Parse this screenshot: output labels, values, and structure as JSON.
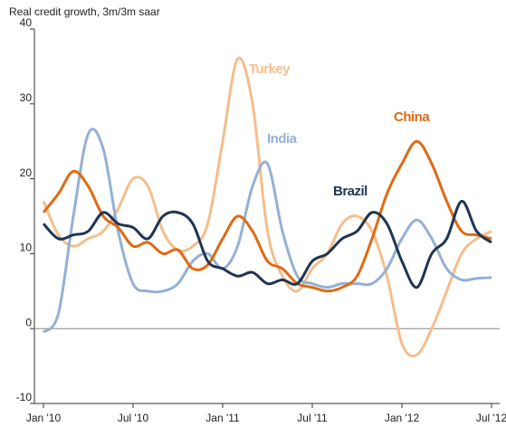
{
  "chart_data": {
    "type": "line",
    "y_axis_label": "Real credit growth, 3m/3m saar",
    "categories": [
      "Jan '10",
      null,
      null,
      null,
      null,
      null,
      "Jul '10",
      null,
      null,
      null,
      null,
      null,
      "Jan '11",
      null,
      null,
      null,
      null,
      null,
      "Jul '11",
      null,
      null,
      null,
      null,
      null,
      "Jan '12",
      null,
      null,
      null,
      null,
      null,
      "Jul '12"
    ],
    "series": [
      {
        "name": "Turkey",
        "color": "#f5be8c",
        "values": [
          17,
          12.5,
          11,
          12,
          13,
          16,
          20,
          19,
          13,
          10.5,
          11,
          14,
          25,
          36,
          30,
          13,
          7,
          5,
          8,
          10,
          14,
          15,
          13,
          7,
          -2,
          -3.5,
          0,
          5,
          10,
          12,
          13
        ]
      },
      {
        "name": "India",
        "color": "#94b0d6",
        "values": [
          -0.5,
          2,
          15,
          26,
          24,
          13,
          6,
          5,
          5,
          6,
          9,
          10,
          8,
          11,
          19,
          22,
          13,
          7,
          6,
          5.5,
          6,
          6,
          6,
          8,
          12,
          14.5,
          12,
          8,
          6.5,
          6.7,
          6.8
        ]
      },
      {
        "name": "China",
        "color": "#e06a12",
        "values": [
          15.5,
          18,
          21,
          19,
          15,
          13.5,
          11,
          11.5,
          10,
          10.5,
          8,
          8.5,
          12,
          15,
          13,
          9,
          8,
          6,
          5.5,
          5,
          5.5,
          7,
          12,
          18,
          22,
          25,
          22,
          17,
          13,
          12.5,
          12
        ]
      },
      {
        "name": "Brazil",
        "color": "#1f3553",
        "values": [
          14,
          12,
          12.5,
          13,
          15.5,
          14,
          13.5,
          12,
          15,
          15.5,
          14,
          9,
          8,
          7,
          7.5,
          6,
          6.5,
          6,
          9,
          10,
          12,
          13,
          15.5,
          14,
          9,
          5.5,
          10,
          12,
          17,
          13,
          11.5
        ]
      }
    ],
    "ylim": [
      -10,
      40
    ],
    "yticks": [
      -10,
      0,
      10,
      20,
      30,
      40
    ]
  }
}
